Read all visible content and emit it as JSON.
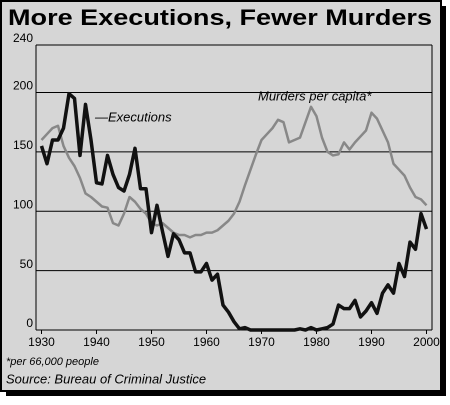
{
  "chart_data": {
    "type": "line",
    "title": "More Executions, Fewer Murders",
    "annotations": [
      "—Executions",
      "Murders per capita*"
    ],
    "footnote": "*per 66,000 people",
    "source": "Source: Bureau of Criminal Justice",
    "x": [
      1930,
      1931,
      1932,
      1933,
      1934,
      1935,
      1936,
      1937,
      1938,
      1939,
      1940,
      1941,
      1942,
      1943,
      1944,
      1945,
      1946,
      1947,
      1948,
      1949,
      1950,
      1951,
      1952,
      1953,
      1954,
      1955,
      1956,
      1957,
      1958,
      1959,
      1960,
      1961,
      1962,
      1963,
      1964,
      1965,
      1966,
      1967,
      1968,
      1969,
      1970,
      1971,
      1972,
      1973,
      1974,
      1975,
      1976,
      1977,
      1978,
      1979,
      1980,
      1981,
      1982,
      1983,
      1984,
      1985,
      1986,
      1987,
      1988,
      1989,
      1990,
      1991,
      1992,
      1993,
      1994,
      1995,
      1996,
      1997,
      1998,
      1999,
      2000
    ],
    "series": [
      {
        "name": "Executions",
        "color": "#111111",
        "width": 3.5,
        "values": [
          155,
          140,
          160,
          160,
          170,
          199,
          195,
          147,
          190,
          160,
          124,
          123,
          147,
          131,
          120,
          117,
          131,
          153,
          119,
          119,
          82,
          105,
          83,
          62,
          81,
          76,
          65,
          65,
          49,
          49,
          56,
          42,
          47,
          21,
          15,
          7,
          1,
          2,
          0,
          0,
          0,
          0,
          0,
          0,
          0,
          0,
          0,
          1,
          0,
          2,
          0,
          1,
          2,
          5,
          21,
          18,
          18,
          25,
          11,
          16,
          23,
          14,
          31,
          38,
          31,
          56,
          45,
          74,
          68,
          98,
          85
        ]
      },
      {
        "name": "Murders per capita*",
        "color": "#888888",
        "width": 2.5,
        "values": [
          160,
          165,
          170,
          172,
          155,
          145,
          138,
          128,
          115,
          112,
          108,
          104,
          103,
          90,
          88,
          98,
          112,
          108,
          102,
          98,
          90,
          88,
          90,
          86,
          82,
          80,
          80,
          78,
          80,
          80,
          82,
          82,
          84,
          88,
          92,
          98,
          108,
          122,
          135,
          148,
          160,
          165,
          170,
          177,
          175,
          158,
          160,
          162,
          175,
          188,
          180,
          162,
          150,
          147,
          148,
          158,
          152,
          158,
          163,
          168,
          183,
          178,
          168,
          158,
          140,
          135,
          130,
          120,
          112,
          110,
          105
        ]
      }
    ],
    "xlim": [
      1929,
      2001
    ],
    "xticks": [
      1930,
      1940,
      1950,
      1960,
      1970,
      1980,
      1990,
      2000
    ],
    "ylim": [
      0,
      240
    ],
    "yticks": [
      0,
      50,
      100,
      150,
      200,
      240
    ],
    "grid": true
  }
}
